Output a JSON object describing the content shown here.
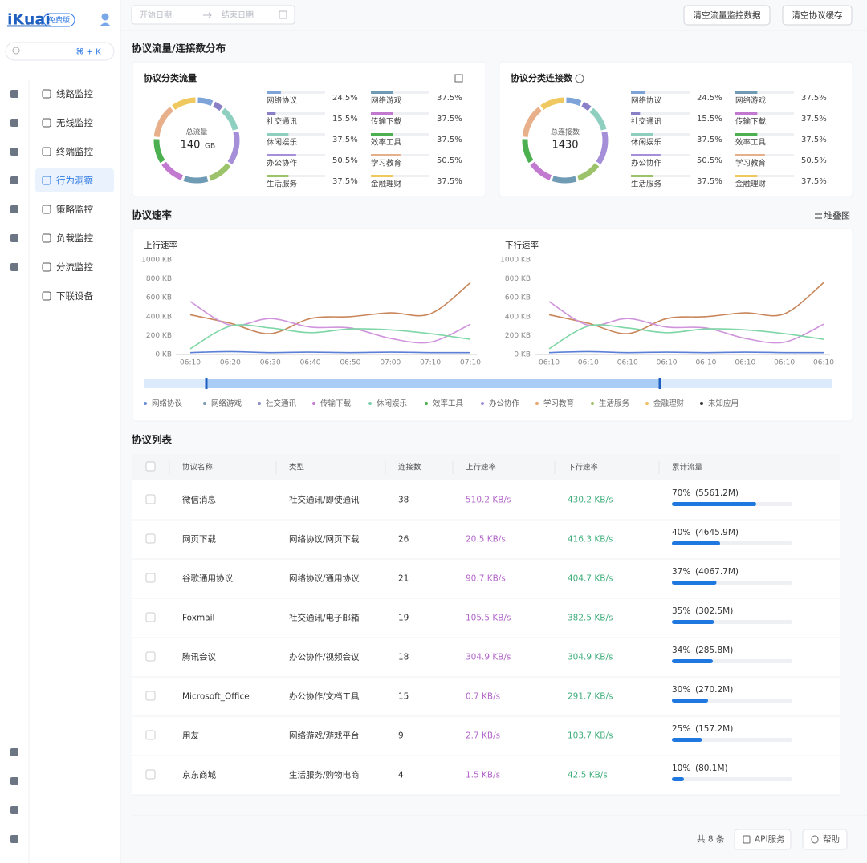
{
  "sidebar": {
    "logo": "iKuai",
    "badge": "免费版",
    "search_shortcut": "⌘ + K",
    "nav": [
      "线路监控",
      "无线监控",
      "终端监控",
      "行为洞察",
      "策略监控",
      "负载监控",
      "分流监控",
      "下联设备"
    ],
    "active_nav": 3
  },
  "toolbar": {
    "start_placeholder": "开始日期",
    "end_placeholder": "结束日期",
    "buttons": [
      "清空流量监控数据",
      "清空协议缓存"
    ]
  },
  "distribution": {
    "title": "协议流量/连接数分布",
    "cards": [
      {
        "title": "协议分类流量",
        "center_label": "总流量",
        "center_value": "140",
        "center_unit": "GB",
        "items": [
          {
            "name": "网络协议",
            "color": "#7ea3d8",
            "value": 24.5,
            "label": "24.5%"
          },
          {
            "name": "社交通讯",
            "color": "#8a80c8",
            "value": 15.5,
            "label": "15.5%"
          },
          {
            "name": "休闲娱乐",
            "color": "#8fcfc0",
            "value": 37.5,
            "label": "37.5%"
          },
          {
            "name": "办公协作",
            "color": "#a58fd8",
            "value": 50.5,
            "label": "50.5%"
          },
          {
            "name": "生活服务",
            "color": "#9cc36a",
            "value": 37.5,
            "label": "37.5%"
          },
          {
            "name": "网络游戏",
            "color": "#6f9bb5",
            "value": 37.5,
            "label": "37.5%"
          },
          {
            "name": "传输下载",
            "color": "#c27ad0",
            "value": 37.5,
            "label": "37.5%"
          },
          {
            "name": "效率工具",
            "color": "#4caf50",
            "value": 37.5,
            "label": "37.5%"
          },
          {
            "name": "学习教育",
            "color": "#e8b08a",
            "value": 50.5,
            "label": "50.5%"
          },
          {
            "name": "金融理财",
            "color": "#f0c860",
            "value": 37.5,
            "label": "37.5%"
          }
        ]
      },
      {
        "title": "协议分类连接数",
        "center_label": "总连接数",
        "center_value": "1430",
        "items": [
          {
            "name": "网络协议",
            "color": "#7ea3d8",
            "value": 24.5,
            "label": "24.5%"
          },
          {
            "name": "社交通讯",
            "color": "#8a80c8",
            "value": 15.5,
            "label": "15.5%"
          },
          {
            "name": "休闲娱乐",
            "color": "#8fcfc0",
            "value": 37.5,
            "label": "37.5%"
          },
          {
            "name": "办公协作",
            "color": "#a58fd8",
            "value": 50.5,
            "label": "50.5%"
          },
          {
            "name": "生活服务",
            "color": "#9cc36a",
            "value": 37.5,
            "label": "37.5%"
          },
          {
            "name": "网络游戏",
            "color": "#6f9bb5",
            "value": 37.5,
            "label": "37.5%"
          },
          {
            "name": "传输下载",
            "color": "#c27ad0",
            "value": 37.5,
            "label": "37.5%"
          },
          {
            "name": "效率工具",
            "color": "#4caf50",
            "value": 37.5,
            "label": "37.5%"
          },
          {
            "name": "学习教育",
            "color": "#e8b08a",
            "value": 50.5,
            "label": "50.5%"
          },
          {
            "name": "金融理财",
            "color": "#f0c860",
            "value": 37.5,
            "label": "37.5%"
          }
        ]
      }
    ]
  },
  "rate": {
    "title": "协议速率",
    "toggle": "堆叠图",
    "charts": [
      {
        "title": "上行速率",
        "ylim": [
          0,
          1000
        ],
        "yticks": [
          {
            "value": 0,
            "label": "0 KB"
          },
          {
            "value": 200,
            "label": "200 KB"
          },
          {
            "value": 400,
            "label": "400 KB"
          },
          {
            "value": 600,
            "label": "600 KB"
          },
          {
            "value": 800,
            "label": "800 KB"
          },
          {
            "value": 1000,
            "label": "1000 KB"
          }
        ],
        "categories": [
          "06:10",
          "06:20",
          "06:30",
          "06:40",
          "06:50",
          "07:00",
          "07:10",
          "07:10"
        ],
        "series": [
          {
            "name": "学习教育",
            "color": "#c8865a",
            "values": [
              420,
              330,
              220,
              380,
              400,
              440,
              430,
              760
            ]
          },
          {
            "name": "传输下载",
            "color": "#cf94dc",
            "values": [
              560,
              310,
              380,
              290,
              280,
              170,
              130,
              320
            ]
          },
          {
            "name": "休闲娱乐",
            "color": "#7fd6a6",
            "values": [
              60,
              300,
              280,
              230,
              270,
              260,
              220,
              160
            ]
          },
          {
            "name": "网络协议",
            "color": "#5b7fd6",
            "values": [
              20,
              30,
              20,
              25,
              20,
              25,
              20,
              20
            ]
          }
        ]
      },
      {
        "title": "下行速率",
        "ylim": [
          0,
          1000
        ],
        "yticks": [
          {
            "value": 0,
            "label": "0 KB"
          },
          {
            "value": 200,
            "label": "200 KB"
          },
          {
            "value": 400,
            "label": "400 KB"
          },
          {
            "value": 600,
            "label": "600 KB"
          },
          {
            "value": 800,
            "label": "800 KB"
          },
          {
            "value": 1000,
            "label": "1000 KB"
          }
        ],
        "categories": [
          "06:10",
          "06:10",
          "06:10",
          "06:10",
          "06:10",
          "06:10",
          "06:10",
          "06:10"
        ],
        "series": [
          {
            "name": "学习教育",
            "color": "#c8865a",
            "values": [
              420,
              330,
              220,
              380,
              400,
              440,
              430,
              760
            ]
          },
          {
            "name": "传输下载",
            "color": "#cf94dc",
            "values": [
              560,
              310,
              380,
              290,
              280,
              170,
              130,
              320
            ]
          },
          {
            "name": "休闲娱乐",
            "color": "#7fd6a6",
            "values": [
              60,
              300,
              280,
              230,
              270,
              260,
              220,
              160
            ]
          },
          {
            "name": "网络协议",
            "color": "#5b7fd6",
            "values": [
              20,
              30,
              20,
              25,
              20,
              25,
              20,
              20
            ]
          }
        ]
      }
    ],
    "legend": [
      {
        "name": "网络协议",
        "color": "#6b8fd6"
      },
      {
        "name": "网络游戏",
        "color": "#7a9ab0"
      },
      {
        "name": "社交通讯",
        "color": "#8a8fc8"
      },
      {
        "name": "传输下载",
        "color": "#c27ad0"
      },
      {
        "name": "休闲娱乐",
        "color": "#7fd0b0"
      },
      {
        "name": "效率工具",
        "color": "#4caf50"
      },
      {
        "name": "办公协作",
        "color": "#a08ed8"
      },
      {
        "name": "学习教育",
        "color": "#e8a870"
      },
      {
        "name": "生活服务",
        "color": "#9cbf6a"
      },
      {
        "name": "金融理财",
        "color": "#f0c060"
      },
      {
        "name": "未知应用",
        "color": "#333333"
      }
    ]
  },
  "table": {
    "title": "协议列表",
    "columns": [
      "协议名称",
      "类型",
      "连接数",
      "上行速率",
      "下行速率",
      "累计流量"
    ],
    "rows": [
      {
        "cells": [
          "微信消息",
          "社交通讯/即使通讯",
          38,
          "510.2 KB/s",
          "430.2 KB/s"
        ],
        "share": 70,
        "share_label": "70%",
        "total": "(5561.2M)"
      },
      {
        "cells": [
          "网页下载",
          "网络协议/网页下载",
          26,
          "20.5 KB/s",
          "416.3 KB/s"
        ],
        "share": 40,
        "share_label": "40%",
        "total": "(4645.9M)"
      },
      {
        "cells": [
          "谷歌通用协议",
          "网络协议/通用协议",
          21,
          "90.7 KB/s",
          "404.7 KB/s"
        ],
        "share": 37,
        "share_label": "37%",
        "total": "(4067.7M)"
      },
      {
        "cells": [
          "Foxmail",
          "社交通讯/电子邮箱",
          19,
          "105.5 KB/s",
          "382.5 KB/s"
        ],
        "share": 35,
        "share_label": "35%",
        "total": "(302.5M)"
      },
      {
        "cells": [
          "腾讯会议",
          "办公协作/视频会议",
          18,
          "304.9 KB/s",
          "304.9 KB/s"
        ],
        "share": 34,
        "share_label": "34%",
        "total": "(285.8M)"
      },
      {
        "cells": [
          "Microsoft_Office",
          "办公协作/文档工具",
          15,
          "0.7 KB/s",
          "291.7 KB/s"
        ],
        "share": 30,
        "share_label": "30%",
        "total": "(270.2M)"
      },
      {
        "cells": [
          "用友",
          "网络游戏/游戏平台",
          9,
          "2.7 KB/s",
          "103.7 KB/s"
        ],
        "share": 25,
        "share_label": "25%",
        "total": "(157.2M)"
      },
      {
        "cells": [
          "京东商城",
          "生活服务/购物电商",
          4,
          "1.5 KB/s",
          "42.5 KB/s"
        ],
        "share": 10,
        "share_label": "10%",
        "total": "(80.1M)"
      }
    ]
  },
  "footer": {
    "count": "共 8 条",
    "buttons": [
      "API服务",
      "帮助"
    ]
  }
}
